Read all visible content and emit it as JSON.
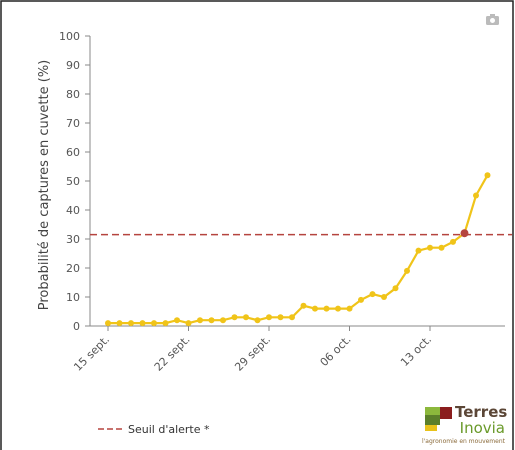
{
  "chart_data": {
    "type": "line",
    "y_label": "Probabilité de captures en cuvette (%)",
    "categories": [
      "15 sept.",
      null,
      null,
      null,
      null,
      null,
      null,
      "22 sept.",
      null,
      null,
      null,
      null,
      null,
      null,
      "29 sept.",
      null,
      null,
      null,
      null,
      null,
      null,
      "06 oct.",
      null,
      null,
      null,
      null,
      null,
      null,
      "13 oct.",
      null,
      null,
      null,
      null,
      null
    ],
    "series": [
      {
        "name": "Probabilité",
        "color": "#f0c419",
        "values": [
          1,
          1,
          1,
          1,
          1,
          1,
          2,
          1,
          2,
          2,
          2,
          3,
          3,
          2,
          3,
          3,
          3,
          7,
          6,
          6,
          6,
          6,
          9,
          11,
          10,
          13,
          19,
          26,
          27,
          27,
          29,
          32,
          45,
          52
        ]
      }
    ],
    "threshold": {
      "name": "Seuil d'alerte *",
      "value": 31.5,
      "color": "#b5443f"
    },
    "ylim": [
      0,
      100
    ],
    "yticks": [
      0,
      10,
      20,
      30,
      40,
      50,
      60,
      70,
      80,
      90,
      100
    ],
    "grid": false
  },
  "logo": {
    "line1": "Terres",
    "line2": "Inovia",
    "tagline": "l'agronomie en mouvement"
  }
}
